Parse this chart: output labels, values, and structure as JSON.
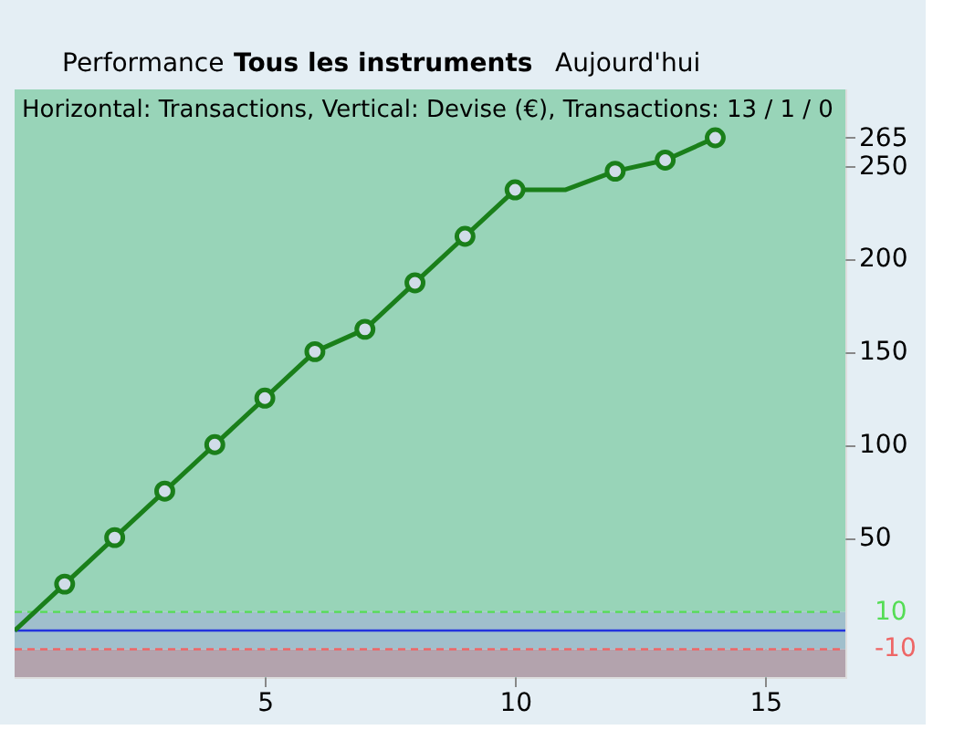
{
  "chart_data": {
    "type": "line",
    "title": "Horizontal: Transactions, Vertical: Devise (€), Transactions: 13 / 1 / 0",
    "annotations": [
      "Performance",
      "Tous les instruments",
      "Aujourd'hui"
    ],
    "x": [
      0,
      1,
      2,
      3,
      4,
      5,
      6,
      7,
      8,
      9,
      10,
      11,
      12,
      13,
      14
    ],
    "series": [
      {
        "color": "#1a7f1a",
        "marker": "none",
        "values": [
          0,
          25,
          50,
          75,
          100,
          125,
          150,
          162,
          187,
          212,
          237,
          237,
          247,
          253,
          265
        ]
      },
      {
        "type": "scatter",
        "color": "#1a7f1a",
        "marker": "circle",
        "x": [
          1,
          2,
          3,
          4,
          5,
          6,
          7,
          8,
          9,
          10,
          12,
          13,
          14
        ],
        "values": [
          25,
          50,
          75,
          100,
          125,
          150,
          162,
          187,
          212,
          237,
          247,
          253,
          265
        ]
      }
    ],
    "xlim": [
      0,
      16.6
    ],
    "ylim": [
      -25,
      291
    ],
    "xticks": [
      5,
      10,
      15
    ],
    "yticks": [
      50,
      100,
      150,
      200,
      250,
      265
    ],
    "ref_lines": [
      {
        "axis": "y",
        "value": 10,
        "label": "10",
        "color": "#55dd55",
        "line_style": "dashed"
      },
      {
        "axis": "y",
        "value": -10,
        "label": "-10",
        "color": "#ee6666",
        "line_style": "dashed"
      },
      {
        "axis": "y",
        "value": 0,
        "label": null,
        "color": "#2233dd",
        "line_style": "solid"
      }
    ],
    "bands": [
      {
        "axis": "y",
        "from": 10,
        "to": 291,
        "color": "#98d4b8",
        "label": null
      },
      {
        "axis": "y",
        "from": -10,
        "to": 10,
        "color": "#a0bfcc",
        "label": null
      },
      {
        "axis": "y",
        "from": -25,
        "to": -10,
        "color": "#b3a3ad",
        "label": null
      }
    ],
    "grid": true,
    "line_style": "solid"
  }
}
